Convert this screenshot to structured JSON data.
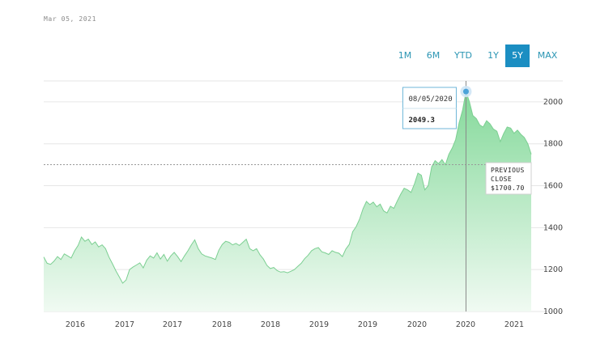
{
  "header": {
    "date": "Mar 05, 2021"
  },
  "range_buttons": [
    {
      "label": "1M",
      "active": false
    },
    {
      "label": "6M",
      "active": false
    },
    {
      "label": "YTD",
      "active": false
    },
    {
      "label": "1Y",
      "active": false
    },
    {
      "label": "5Y",
      "active": true
    },
    {
      "label": "MAX",
      "active": false
    }
  ],
  "colors": {
    "accent": "#1b8ec2",
    "area_top": "#8fdca3",
    "area_bottom": "#eaf8ee",
    "line": "#7ccf92"
  },
  "chart_data": {
    "type": "area",
    "title": "",
    "xlabel": "",
    "ylabel": "",
    "ylim": [
      1000,
      2100
    ],
    "yticks": [
      1000,
      1200,
      1400,
      1600,
      1800,
      2000
    ],
    "xtick_labels": [
      "2016",
      "2017",
      "2017",
      "2018",
      "2018",
      "2019",
      "2019",
      "2020",
      "2020",
      "2021"
    ],
    "grid": true,
    "series": [
      {
        "values": [
          1260,
          1230,
          1225,
          1240,
          1262,
          1248,
          1275,
          1265,
          1255,
          1290,
          1315,
          1355,
          1335,
          1345,
          1320,
          1332,
          1308,
          1318,
          1300,
          1260,
          1228,
          1195,
          1165,
          1135,
          1150,
          1200,
          1212,
          1222,
          1232,
          1208,
          1245,
          1265,
          1255,
          1280,
          1250,
          1272,
          1240,
          1265,
          1282,
          1262,
          1238,
          1265,
          1290,
          1318,
          1342,
          1300,
          1275,
          1265,
          1260,
          1255,
          1248,
          1292,
          1320,
          1335,
          1330,
          1318,
          1325,
          1315,
          1330,
          1345,
          1300,
          1290,
          1300,
          1270,
          1250,
          1220,
          1205,
          1210,
          1195,
          1188,
          1190,
          1185,
          1192,
          1200,
          1215,
          1230,
          1252,
          1268,
          1290,
          1300,
          1305,
          1285,
          1280,
          1272,
          1290,
          1282,
          1278,
          1262,
          1298,
          1320,
          1380,
          1405,
          1440,
          1490,
          1525,
          1510,
          1522,
          1500,
          1512,
          1480,
          1470,
          1502,
          1492,
          1528,
          1560,
          1588,
          1580,
          1568,
          1610,
          1660,
          1650,
          1580,
          1600,
          1690,
          1720,
          1705,
          1725,
          1700,
          1750,
          1780,
          1820,
          1900,
          1960,
          2049.3,
          2000,
          1935,
          1920,
          1890,
          1880,
          1910,
          1895,
          1870,
          1860,
          1810,
          1850,
          1880,
          1875,
          1850,
          1865,
          1845,
          1830,
          1800,
          1750
        ]
      }
    ],
    "tooltip": {
      "date": "08/05/2020",
      "value": "2049.3"
    },
    "previous_close": {
      "line1": "PREVIOUS",
      "line2": "CLOSE",
      "value_label": "$1700.70",
      "value": 1700.7
    }
  }
}
